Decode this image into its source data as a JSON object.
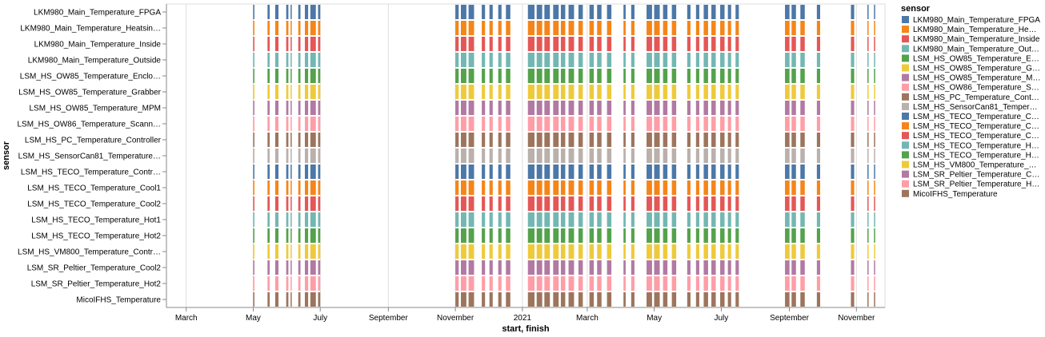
{
  "chart_data": {
    "type": "timeline",
    "ylabel": "sensor",
    "xlabel": "start, finish",
    "x_domain": [
      "2020-02-12",
      "2021-11-27"
    ],
    "x_ticks": [
      {
        "date": "2020-03-01",
        "label": "March"
      },
      {
        "date": "2020-05-01",
        "label": "May"
      },
      {
        "date": "2020-07-01",
        "label": "July"
      },
      {
        "date": "2020-09-01",
        "label": "September"
      },
      {
        "date": "2020-11-01",
        "label": "November"
      },
      {
        "date": "2021-01-01",
        "label": "2021"
      },
      {
        "date": "2021-03-01",
        "label": "March"
      },
      {
        "date": "2021-05-01",
        "label": "May"
      },
      {
        "date": "2021-07-01",
        "label": "July"
      },
      {
        "date": "2021-09-01",
        "label": "September"
      },
      {
        "date": "2021-11-01",
        "label": "November"
      }
    ],
    "rows": [
      {
        "label": "LKM980_Main_Temperature_FPGA",
        "color": "#4c78a8"
      },
      {
        "label": "LKM980_Main_Temperature_Heatsin…",
        "color": "#f58518"
      },
      {
        "label": "LKM980_Main_Temperature_Inside",
        "color": "#e45756"
      },
      {
        "label": "LKM980_Main_Temperature_Outside",
        "color": "#72b7b2"
      },
      {
        "label": "LSM_HS_OW85_Temperature_Enclo…",
        "color": "#54a24b"
      },
      {
        "label": "LSM_HS_OW85_Temperature_Grabber",
        "color": "#eeca3b"
      },
      {
        "label": "LSM_HS_OW85_Temperature_MPM",
        "color": "#b279a2"
      },
      {
        "label": "LSM_HS_OW86_Temperature_Scann…",
        "color": "#ff9da6"
      },
      {
        "label": "LSM_HS_PC_Temperature_Controller",
        "color": "#9d755d"
      },
      {
        "label": "LSM_HS_SensorCan81_Temperature…",
        "color": "#bab0ac"
      },
      {
        "label": "LSM_HS_TECO_Temperature_Contr…",
        "color": "#4c78a8"
      },
      {
        "label": "LSM_HS_TECO_Temperature_Cool1",
        "color": "#f58518"
      },
      {
        "label": "LSM_HS_TECO_Temperature_Cool2",
        "color": "#e45756"
      },
      {
        "label": "LSM_HS_TECO_Temperature_Hot1",
        "color": "#72b7b2"
      },
      {
        "label": "LSM_HS_TECO_Temperature_Hot2",
        "color": "#54a24b"
      },
      {
        "label": "LSM_HS_VM800_Temperature_Contr…",
        "color": "#eeca3b"
      },
      {
        "label": "LSM_SR_Peltier_Temperature_Cool2",
        "color": "#b279a2"
      },
      {
        "label": "LSM_SR_Peltier_Temperature_Hot2",
        "color": "#ff9da6"
      },
      {
        "label": "MicoIFHS_Temperature",
        "color": "#9d755d"
      }
    ],
    "intervals": [
      [
        "2020-05-01",
        "2020-05-02"
      ],
      [
        "2020-05-14",
        "2020-05-16"
      ],
      [
        "2020-05-21",
        "2020-05-24"
      ],
      [
        "2020-05-31",
        "2020-06-02"
      ],
      [
        "2020-06-04",
        "2020-06-05"
      ],
      [
        "2020-06-11",
        "2020-06-13"
      ],
      [
        "2020-06-17",
        "2020-06-20"
      ],
      [
        "2020-06-22",
        "2020-06-27"
      ],
      [
        "2020-06-29",
        "2020-07-01"
      ],
      [
        "2020-11-01",
        "2020-11-04"
      ],
      [
        "2020-11-06",
        "2020-11-11"
      ],
      [
        "2020-11-13",
        "2020-11-18"
      ],
      [
        "2020-11-25",
        "2020-11-28"
      ],
      [
        "2020-12-02",
        "2020-12-05"
      ],
      [
        "2020-12-10",
        "2020-12-13"
      ],
      [
        "2020-12-17",
        "2020-12-21"
      ],
      [
        "2021-01-06",
        "2021-01-12"
      ],
      [
        "2021-01-14",
        "2021-01-19"
      ],
      [
        "2021-01-21",
        "2021-01-26"
      ],
      [
        "2021-01-29",
        "2021-02-03"
      ],
      [
        "2021-02-05",
        "2021-02-09"
      ],
      [
        "2021-02-12",
        "2021-02-17"
      ],
      [
        "2021-02-21",
        "2021-02-25"
      ],
      [
        "2021-03-03",
        "2021-03-07"
      ],
      [
        "2021-03-10",
        "2021-03-14"
      ],
      [
        "2021-03-19",
        "2021-03-23"
      ],
      [
        "2021-04-03",
        "2021-04-05"
      ],
      [
        "2021-04-10",
        "2021-04-13"
      ],
      [
        "2021-04-24",
        "2021-04-29"
      ],
      [
        "2021-05-01",
        "2021-05-06"
      ],
      [
        "2021-05-09",
        "2021-05-13"
      ],
      [
        "2021-05-17",
        "2021-05-21"
      ],
      [
        "2021-05-31",
        "2021-06-03"
      ],
      [
        "2021-06-08",
        "2021-06-11"
      ],
      [
        "2021-06-15",
        "2021-06-19"
      ],
      [
        "2021-06-22",
        "2021-06-26"
      ],
      [
        "2021-06-30",
        "2021-07-04"
      ],
      [
        "2021-07-07",
        "2021-07-10"
      ],
      [
        "2021-07-14",
        "2021-07-17"
      ],
      [
        "2021-08-28",
        "2021-09-01"
      ],
      [
        "2021-09-03",
        "2021-09-07"
      ],
      [
        "2021-09-11",
        "2021-09-15"
      ],
      [
        "2021-09-26",
        "2021-09-29"
      ],
      [
        "2021-10-27",
        "2021-10-30"
      ],
      [
        "2021-11-11",
        "2021-11-12"
      ],
      [
        "2021-11-17",
        "2021-11-18"
      ]
    ],
    "legend": {
      "title": "sensor",
      "placement": "right",
      "items": [
        {
          "label": "LKM980_Main_Temperature_FPGA",
          "color": "#4c78a8"
        },
        {
          "label": "LKM980_Main_Temperature_He…",
          "color": "#f58518"
        },
        {
          "label": "LKM980_Main_Temperature_Inside",
          "color": "#e45756"
        },
        {
          "label": "LKM980_Main_Temperature_Out…",
          "color": "#72b7b2"
        },
        {
          "label": "LSM_HS_OW85_Temperature_E…",
          "color": "#54a24b"
        },
        {
          "label": "LSM_HS_OW85_Temperature_G…",
          "color": "#eeca3b"
        },
        {
          "label": "LSM_HS_OW85_Temperature_M…",
          "color": "#b279a2"
        },
        {
          "label": "LSM_HS_OW86_Temperature_S…",
          "color": "#ff9da6"
        },
        {
          "label": "LSM_HS_PC_Temperature_Cont…",
          "color": "#9d755d"
        },
        {
          "label": "LSM_HS_SensorCan81_Temper…",
          "color": "#bab0ac"
        },
        {
          "label": "LSM_HS_TECO_Temperature_C…",
          "color": "#4c78a8"
        },
        {
          "label": "LSM_HS_TECO_Temperature_C…",
          "color": "#f58518"
        },
        {
          "label": "LSM_HS_TECO_Temperature_C…",
          "color": "#e45756"
        },
        {
          "label": "LSM_HS_TECO_Temperature_H…",
          "color": "#72b7b2"
        },
        {
          "label": "LSM_HS_TECO_Temperature_H…",
          "color": "#54a24b"
        },
        {
          "label": "LSM_HS_VM800_Temperature_…",
          "color": "#eeca3b"
        },
        {
          "label": "LSM_SR_Peltier_Temperature_C…",
          "color": "#b279a2"
        },
        {
          "label": "LSM_SR_Peltier_Temperature_H…",
          "color": "#ff9da6"
        },
        {
          "label": "MicoIFHS_Temperature",
          "color": "#9d755d"
        }
      ]
    },
    "grid": true
  }
}
